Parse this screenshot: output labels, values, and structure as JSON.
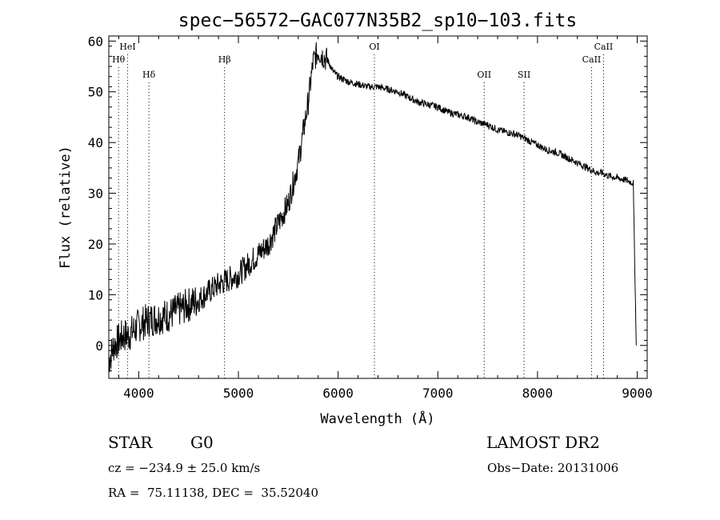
{
  "chart_data": {
    "type": "line",
    "title": "spec−56572−GAC077N35B2_sp10−103.fits",
    "xlabel": "Wavelength (Å)",
    "ylabel": "Flux (relative)",
    "xlim": [
      3700,
      9100
    ],
    "ylim": [
      -6.5,
      61
    ],
    "x_ticks": [
      4000,
      5000,
      6000,
      7000,
      8000,
      9000
    ],
    "y_ticks": [
      0,
      10,
      20,
      30,
      40,
      50,
      60
    ],
    "x_tick_labels": [
      "4000",
      "5000",
      "6000",
      "7000",
      "8000",
      "9000"
    ],
    "y_tick_labels": [
      "0",
      "10",
      "20",
      "30",
      "40",
      "50",
      "60"
    ],
    "grid": false,
    "series": [
      {
        "x": [
          3700,
          3750,
          3800,
          3850,
          3900,
          3950,
          4000,
          4100,
          4200,
          4300,
          4400,
          4500,
          4600,
          4700,
          4800,
          4900,
          5000,
          5100,
          5200,
          5300,
          5400,
          5500,
          5550,
          5600,
          5650,
          5700,
          5750,
          5800,
          5850,
          5900,
          5950,
          6000,
          6100,
          6200,
          6300,
          6400,
          6500,
          6600,
          6700,
          6800,
          6900,
          7000,
          7100,
          7200,
          7300,
          7400,
          7500,
          7600,
          7700,
          7800,
          7900,
          8000,
          8100,
          8200,
          8300,
          8400,
          8500,
          8550,
          8600,
          8650,
          8700,
          8800,
          8900,
          8960,
          8990
        ],
        "y": [
          -3,
          0,
          1,
          2,
          2,
          3,
          4,
          5,
          5.5,
          6,
          7,
          8,
          9,
          10.5,
          12,
          13,
          14,
          16,
          18,
          20,
          24,
          28,
          32,
          36,
          42,
          48,
          56,
          58,
          57,
          56,
          54,
          53,
          52,
          51.5,
          51,
          51,
          50.5,
          50,
          49,
          48,
          47.5,
          47,
          46,
          45.5,
          45,
          44,
          43.5,
          42.5,
          42,
          41.5,
          40.5,
          39.5,
          38.5,
          38,
          37,
          36,
          35,
          34.5,
          34,
          34,
          33.5,
          33,
          32.5,
          32,
          0
        ]
      }
    ],
    "line_markers": [
      {
        "label": "HeI",
        "x": 3889,
        "row": 1
      },
      {
        "label": "Hθ",
        "x": 3798,
        "row": 2
      },
      {
        "label": "Hδ",
        "x": 4102,
        "row": 3
      },
      {
        "label": "Hβ",
        "x": 4861,
        "row": 2
      },
      {
        "label": "OI",
        "x": 6364,
        "row": 1
      },
      {
        "label": "OII",
        "x": 7465,
        "row": 3
      },
      {
        "label": "SII",
        "x": 7865,
        "row": 3
      },
      {
        "label": "CaII",
        "x": 8542,
        "row": 2
      },
      {
        "label": "CaII",
        "x": 8662,
        "row": 1
      }
    ]
  },
  "info": {
    "object_class": "STAR",
    "subclass": "G0",
    "survey": "LAMOST DR2",
    "cz": "cz = −234.9 ± 25.0 km/s",
    "obs_date": "Obs−Date: 20131006",
    "radec": "RA =  75.11138, DEC =  35.52040"
  }
}
